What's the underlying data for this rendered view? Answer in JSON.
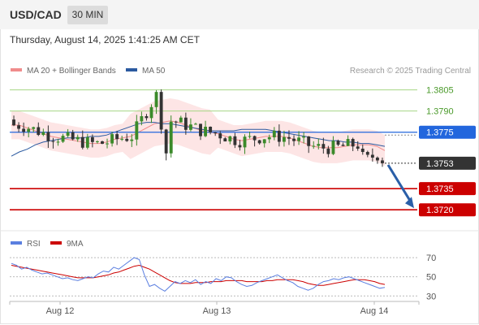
{
  "header": {
    "symbol": "USD/CAD",
    "timeframe": "30 MIN"
  },
  "timestamp": "Thursday, August 14, 2025 1:41:25 AM CET",
  "legend": {
    "ma20_bb": "MA 20 + Bollinger Bands",
    "ma50": "MA 50",
    "credit": "Research © 2025 Trading Central"
  },
  "rsi_legend": {
    "rsi": "RSI",
    "ma9": "9MA"
  },
  "colors": {
    "candle_up": "#3b8a2a",
    "candle_down": "#333333",
    "bollinger_band": "#fde0e0",
    "ma20": "#f08c8c",
    "ma50": "#2b5aa0",
    "resistance": "#a6d684",
    "pivot": "#2266dd",
    "support": "#cc0000",
    "arrow": "#2a5fa8",
    "rsi": "#5b7fe0",
    "rsi_ma": "#cc0000"
  },
  "chart_data": [
    {
      "type": "candlestick",
      "title": "USD/CAD",
      "xlabel": "",
      "ylabel": "",
      "ylim": [
        1.3704,
        1.3814
      ],
      "x_ticks": [
        "Aug 12",
        "Aug 13",
        "Aug 14"
      ],
      "current_price": "1.3753",
      "levels": [
        {
          "value": 1.3805,
          "label": "1.3805",
          "kind": "resistance"
        },
        {
          "value": 1.379,
          "label": "1.3790",
          "kind": "resistance"
        },
        {
          "value": 1.3775,
          "label": "1.3775",
          "kind": "pivot"
        },
        {
          "value": 1.3735,
          "label": "1.3735",
          "kind": "support"
        },
        {
          "value": 1.372,
          "label": "1.3720",
          "kind": "support"
        }
      ],
      "forecast": {
        "from": 1.3753,
        "to": 1.372,
        "direction": "down"
      },
      "series": [
        {
          "name": "MA 20 + Bollinger Bands",
          "values": [
            1.378,
            1.378,
            1.3778,
            1.3776,
            1.3774,
            1.3772,
            1.3771,
            1.377,
            1.3769,
            1.3768,
            1.3767,
            1.3767,
            1.3768,
            1.377,
            1.3771,
            1.3772,
            1.3775,
            1.3778,
            1.3781,
            1.3782,
            1.3783,
            1.3782,
            1.378,
            1.3778,
            1.3776,
            1.3775,
            1.3774,
            1.3772,
            1.377,
            1.3769,
            1.377,
            1.3771,
            1.3772,
            1.3772,
            1.3772,
            1.3771,
            1.3769,
            1.3767,
            1.3765,
            1.3764,
            1.3764,
            1.3764,
            1.3765,
            1.3766,
            1.3766,
            1.3766,
            1.3765,
            1.3762
          ]
        },
        {
          "name": "MA 50",
          "values": [
            1.3758,
            1.3761,
            1.3763,
            1.3766,
            1.3768,
            1.3769,
            1.377,
            1.3771,
            1.3771,
            1.3771,
            1.3772,
            1.3772,
            1.3773,
            1.3775,
            1.3777,
            1.3779,
            1.3781,
            1.3782,
            1.3782,
            1.3781,
            1.3781,
            1.378,
            1.3779,
            1.3778,
            1.3777,
            1.3776,
            1.3776,
            1.3776,
            1.3776,
            1.3777,
            1.3777,
            1.3777,
            1.3777,
            1.3776,
            1.3775,
            1.3774,
            1.3773,
            1.3772,
            1.3771,
            1.377,
            1.3769,
            1.3769,
            1.3768,
            1.3768,
            1.3767,
            1.3767,
            1.3766,
            1.3765
          ]
        }
      ]
    },
    {
      "type": "line",
      "title": "RSI",
      "xlabel": "",
      "ylabel": "",
      "ylim": [
        26,
        76
      ],
      "y_ticks": [
        70,
        50,
        30
      ],
      "series": [
        {
          "name": "RSI",
          "values": [
            64,
            62,
            58,
            60,
            57,
            55,
            53,
            54,
            52,
            50,
            48,
            49,
            47,
            46,
            48,
            50,
            49,
            53,
            56,
            55,
            60,
            58,
            62,
            66,
            70,
            68,
            52,
            40,
            42,
            38,
            35,
            40,
            45,
            43,
            46,
            44,
            47,
            42,
            45,
            43,
            48,
            46,
            50,
            49,
            45,
            42,
            40,
            41,
            44,
            46,
            48,
            50,
            52,
            49,
            46,
            44,
            40,
            38,
            36,
            38,
            42,
            45,
            46,
            48,
            47,
            49,
            50,
            48,
            46,
            44,
            42,
            40,
            38,
            39
          ]
        },
        {
          "name": "9MA",
          "values": [
            62,
            61,
            60,
            59,
            58,
            57,
            56,
            55,
            54,
            53,
            52,
            51,
            50,
            49,
            49,
            49,
            49,
            50,
            51,
            52,
            54,
            55,
            57,
            59,
            61,
            62,
            60,
            58,
            55,
            52,
            49,
            46,
            44,
            43,
            43,
            43,
            44,
            44,
            44,
            45,
            45,
            45,
            46,
            46,
            46,
            46,
            45,
            45,
            45,
            45,
            46,
            46,
            47,
            47,
            47,
            47,
            46,
            45,
            43,
            42,
            41,
            41,
            42,
            43,
            44,
            45,
            46,
            47,
            47,
            47,
            46,
            45,
            43,
            42
          ]
        }
      ]
    }
  ]
}
